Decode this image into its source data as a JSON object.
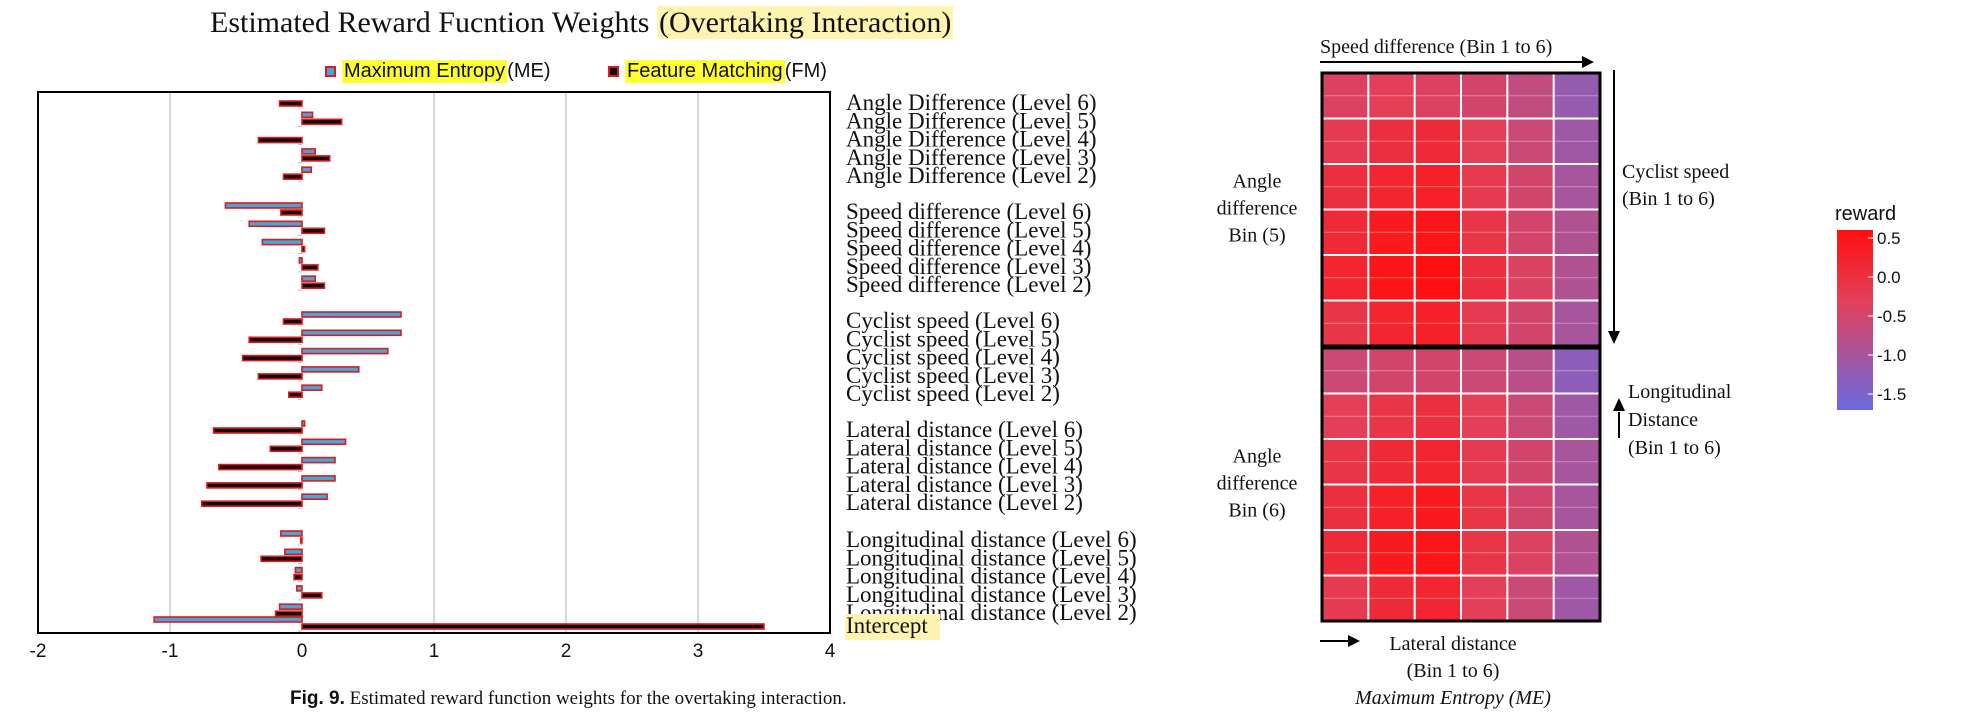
{
  "chart_data": [
    {
      "type": "bar",
      "title": "Estimated Reward Fucntion Weights",
      "title_highlight": "(Overtaking Interaction)",
      "orientation": "horizontal",
      "xlim": [
        -2,
        4
      ],
      "x_ticks": [
        "-2",
        "-1",
        "0",
        "1",
        "2",
        "3",
        "4"
      ],
      "grid": "vertical",
      "legend_position": "top",
      "categories": [
        "Angle Difference (Level 6)",
        "Angle Difference (Level 5)",
        "Angle Difference (Level 4)",
        "Angle Difference (Level 3)",
        "Angle Difference (Level 2)",
        "Speed difference (Level 6)",
        "Speed difference (Level 5)",
        "Speed difference (Level 4)",
        "Speed difference (Level 3)",
        "Speed difference (Level 2)",
        "Cyclist speed (Level 6)",
        "Cyclist speed (Level 5)",
        "Cyclist speed (Level 4)",
        "Cyclist speed (Level 3)",
        "Cyclist speed (Level 2)",
        "Lateral distance (Level 6)",
        "Lateral distance (Level 5)",
        "Lateral distance (Level 4)",
        "Lateral distance (Level 3)",
        "Lateral distance (Level 2)",
        "Longitudinal distance (Level 6)",
        "Longitudinal distance (Level 5)",
        "Longitudinal distance (Level 4)",
        "Longitudinal distance (Level 3)",
        "Longitudinal distance (Level 2)",
        "Intercept"
      ],
      "series": [
        {
          "name_highlight": "Maximum Entropy",
          "name_suffix": "(ME)",
          "color": "#3fa9d8",
          "values": [
            0.0,
            0.08,
            0.0,
            0.1,
            0.07,
            -0.58,
            -0.4,
            -0.3,
            -0.02,
            0.1,
            0.75,
            0.75,
            0.65,
            0.43,
            0.15,
            0.02,
            0.33,
            0.25,
            0.25,
            0.19,
            -0.16,
            -0.13,
            -0.05,
            -0.04,
            -0.17,
            -1.12
          ]
        },
        {
          "name_highlight": "Feature Matching",
          "name_suffix": "(FM)",
          "color": "#0a0a0a",
          "values": [
            -0.17,
            0.3,
            -0.33,
            0.21,
            -0.14,
            -0.16,
            0.17,
            0.02,
            0.12,
            0.17,
            -0.14,
            -0.4,
            -0.45,
            -0.33,
            -0.1,
            -0.67,
            -0.24,
            -0.63,
            -0.72,
            -0.76,
            -0.01,
            -0.31,
            -0.06,
            0.15,
            -0.2,
            3.5
          ]
        }
      ]
    },
    {
      "type": "heatmap",
      "colorbar_title": "reward",
      "colorbar_ticks": [
        "0.5",
        "0.0",
        "-0.5",
        "-1.0",
        "-1.5"
      ],
      "colors": {
        "high": "#ff1010",
        "mid": "#e2405a",
        "low": "#6a6ae0"
      },
      "panels": [
        {
          "row_label": [
            "Angle",
            "difference",
            "Bin (5)"
          ],
          "values": [
            [
              -0.4,
              -0.3,
              -0.4,
              -0.5,
              -0.7,
              -1.2
            ],
            [
              -0.2,
              0.0,
              0.1,
              -0.3,
              -0.6,
              -1.1
            ],
            [
              0.0,
              0.2,
              0.3,
              -0.2,
              -0.5,
              -1.0
            ],
            [
              0.1,
              0.4,
              0.5,
              -0.1,
              -0.5,
              -0.9
            ],
            [
              0.2,
              0.5,
              0.6,
              0.0,
              -0.4,
              -0.9
            ],
            [
              -0.1,
              0.2,
              0.3,
              -0.2,
              -0.5,
              -1.0
            ]
          ]
        },
        {
          "row_label": [
            "Angle",
            "difference",
            "Bin (6)"
          ],
          "values": [
            [
              -0.6,
              -0.5,
              -0.5,
              -0.6,
              -0.8,
              -1.3
            ],
            [
              -0.3,
              -0.1,
              0.0,
              -0.3,
              -0.6,
              -1.1
            ],
            [
              -0.1,
              0.1,
              0.2,
              -0.2,
              -0.5,
              -1.0
            ],
            [
              0.0,
              0.3,
              0.4,
              -0.1,
              -0.5,
              -1.0
            ],
            [
              0.1,
              0.4,
              0.5,
              -0.1,
              -0.4,
              -0.9
            ],
            [
              -0.2,
              0.1,
              0.2,
              -0.3,
              -0.6,
              -1.1
            ]
          ]
        }
      ],
      "top_axis_label": "Speed difference (Bin 1 to 6)",
      "right_axis_label_1": [
        "Cyclist speed",
        "(Bin 1 to 6)"
      ],
      "right_axis_label_2": [
        "Longitudinal",
        "Distance",
        "(Bin 1 to 6)"
      ],
      "bottom_axis_label": [
        "Lateral distance",
        "(Bin 1 to 6)"
      ],
      "subtitle": "Maximum Entropy (ME)"
    }
  ],
  "caption": {
    "label": "Fig. 9.",
    "text": "Estimated reward function weights for the overtaking interaction."
  }
}
